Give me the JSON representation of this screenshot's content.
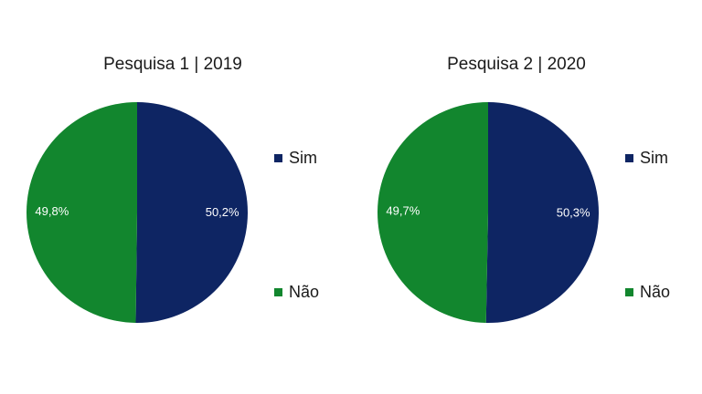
{
  "chart_data": [
    {
      "type": "pie",
      "title": "Pesquisa 1 | 2019",
      "categories": [
        "Sim",
        "Não"
      ],
      "values": [
        50.2,
        49.8
      ],
      "data_labels": [
        "50,2%",
        "49,8%"
      ],
      "colors": [
        "#0e2563",
        "#12862e"
      ],
      "legend_placement": "right"
    },
    {
      "type": "pie",
      "title": "Pesquisa 2 | 2020",
      "categories": [
        "Sim",
        "Não"
      ],
      "values": [
        50.3,
        49.7
      ],
      "data_labels": [
        "50,3%",
        "49,7%"
      ],
      "colors": [
        "#0e2563",
        "#12862e"
      ],
      "legend_placement": "right"
    }
  ]
}
